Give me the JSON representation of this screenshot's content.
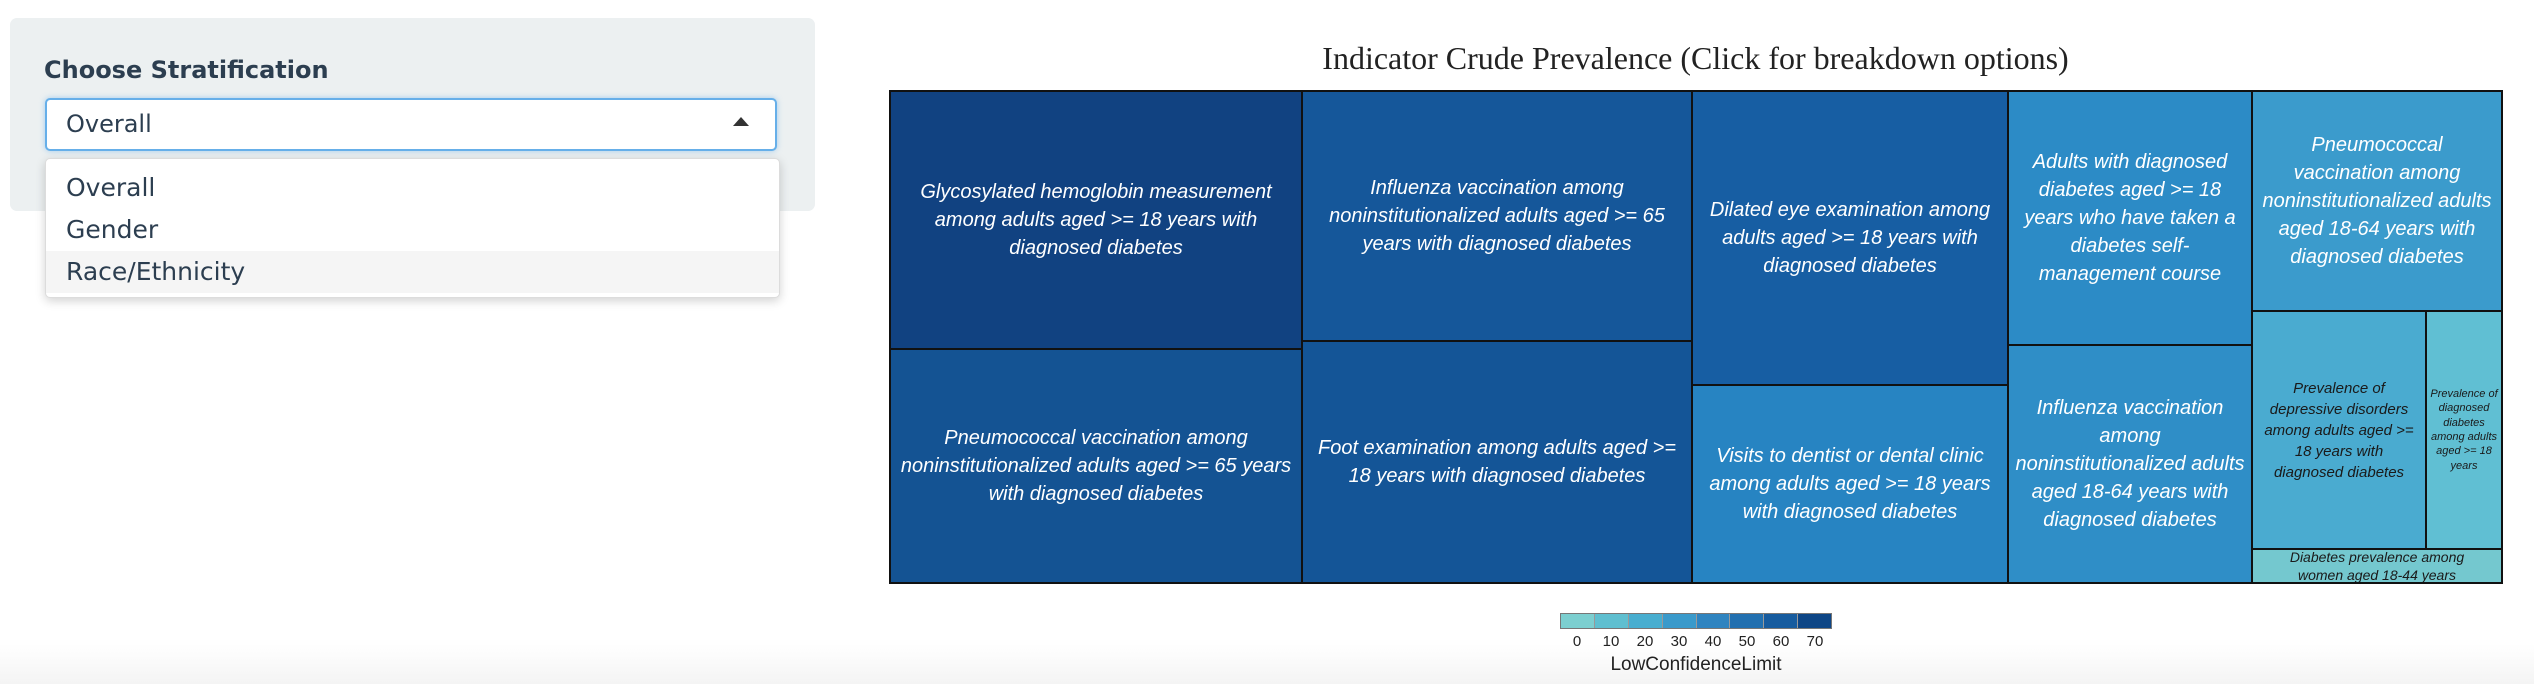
{
  "control": {
    "label": "Choose Stratification",
    "selected": "Overall",
    "options": [
      "Overall",
      "Gender",
      "Race/Ethnicity"
    ],
    "highlighted_option": "Race/Ethnicity"
  },
  "chart_data": {
    "type": "treemap",
    "title": "Indicator Crude Prevalence (Click for breakdown options)",
    "color_variable": "LowConfidenceLimit",
    "legend": {
      "ticks": [
        "0",
        "10",
        "20",
        "30",
        "40",
        "50",
        "60",
        "70"
      ],
      "colors": [
        "#7ccfd0",
        "#5fbfd0",
        "#48aed0",
        "#3a9acb",
        "#2f84c0",
        "#2270b0",
        "#175c9f",
        "#0e4686"
      ],
      "placement": "bottom-center"
    },
    "items": [
      {
        "label": "Glycosylated hemoglobin measurement among adults aged >= 18 years with diagnosed diabetes",
        "color": "#114281",
        "text_color": "#ffffff"
      },
      {
        "label": "Pneumococcal vaccination among noninstitutionalized adults aged >= 65 years with diagnosed diabetes",
        "color": "#145393",
        "text_color": "#ffffff"
      },
      {
        "label": "Influenza vaccination among noninstitutionalized adults aged >= 65 years with diagnosed diabetes",
        "color": "#15579a",
        "text_color": "#ffffff"
      },
      {
        "label": "Foot examination among adults aged >= 18 years with diagnosed diabetes",
        "color": "#145597",
        "text_color": "#ffffff"
      },
      {
        "label": "Dilated eye examination among adults aged >= 18 years with diagnosed diabetes",
        "color": "#175ea3",
        "text_color": "#ffffff"
      },
      {
        "label": "Visits to dentist or dental clinic among adults aged >= 18 years with diagnosed diabetes",
        "color": "#2784c2",
        "text_color": "#ffffff"
      },
      {
        "label": "Adults with diagnosed diabetes aged >= 18 years who have taken a diabetes self-management course",
        "color": "#2c8bc6",
        "text_color": "#ffffff"
      },
      {
        "label": "Influenza vaccination among noninstitutionalized adults aged 18-64 years with diagnosed diabetes",
        "color": "#2f8ec7",
        "text_color": "#ffffff"
      },
      {
        "label": "Pneumococcal vaccination among noninstitutionalized adults aged 18-64 years with diagnosed diabetes",
        "color": "#3b9bcc",
        "text_color": "#ffffff"
      },
      {
        "label": "Prevalence of depressive disorders among adults aged >= 18 years with diagnosed diabetes",
        "color": "#4aabd0",
        "text_color": "#1a1a1a"
      },
      {
        "label": "Prevalence of diagnosed diabetes among adults aged >= 18 years",
        "color": "#60bfd3",
        "text_color": "#1a1a1a"
      },
      {
        "label": "Diabetes prevalence among women aged 18-44 years",
        "color": "#74c8cf",
        "text_color": "#1a1a1a"
      }
    ]
  }
}
